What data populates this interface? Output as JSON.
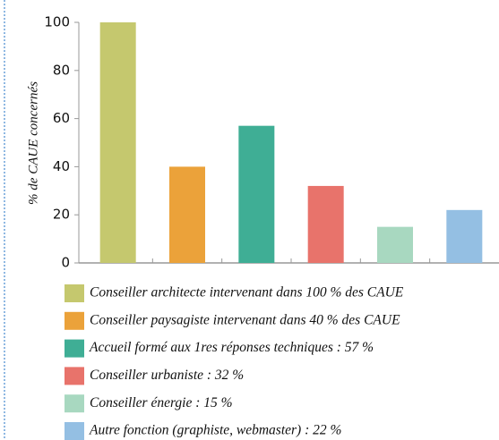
{
  "chart_data": {
    "type": "bar",
    "ylabel": "% de CAUE concernés",
    "categories": [
      "Conseiller architecte intervenant dans 100 % des CAUE",
      "Conseiller paysagiste intervenant dans 40 % des CAUE",
      "Accueil formé aux 1res réponses techniques : 57 %",
      "Conseiller urbaniste : 32 %",
      "Conseiller énergie : 15 %",
      "Autre fonction (graphiste, webmaster) : 22 %"
    ],
    "values": [
      100,
      40,
      57,
      32,
      15,
      22
    ],
    "colors": [
      "#c5c86e",
      "#eba23a",
      "#3fae95",
      "#e8736b",
      "#a8d8c0",
      "#94bfe3"
    ],
    "ylim": [
      0,
      100
    ],
    "yticks": [
      0,
      20,
      40,
      60,
      80,
      100
    ],
    "grid": false
  }
}
